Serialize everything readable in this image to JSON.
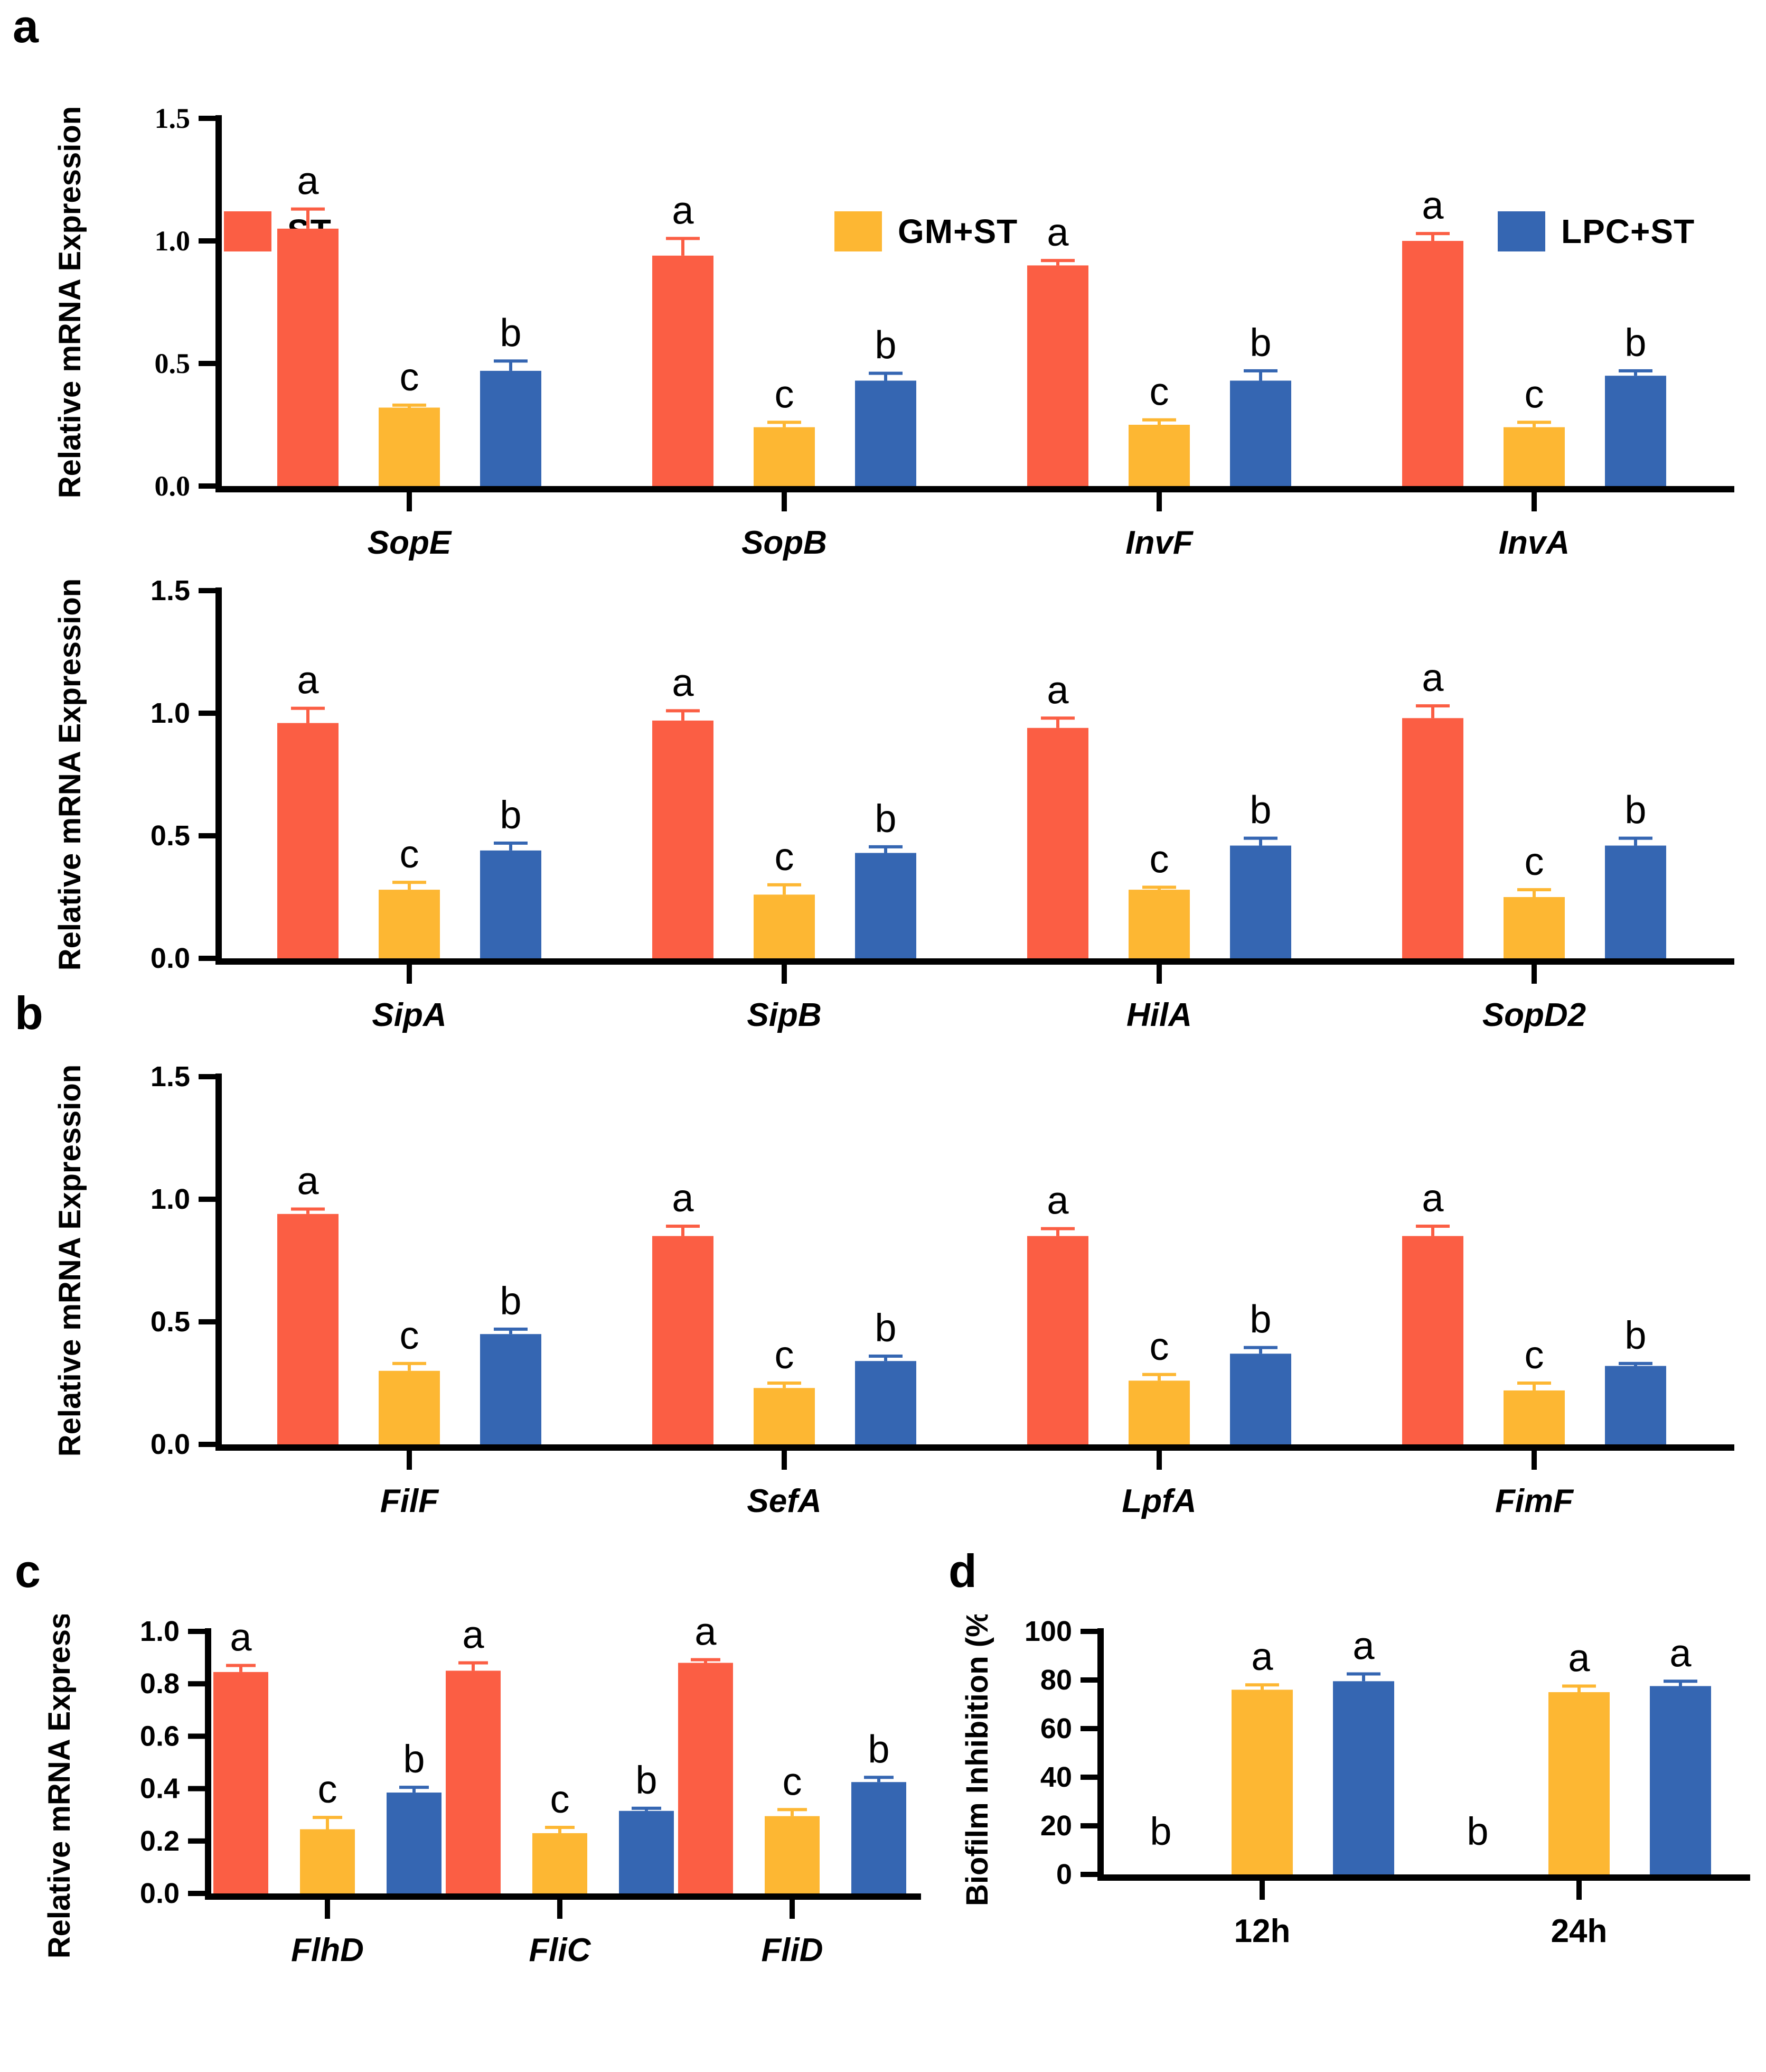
{
  "page": {
    "background": "#ffffff"
  },
  "panels": {
    "a": {
      "letter": "a"
    },
    "b": {
      "letter": "b"
    },
    "c": {
      "letter": "c"
    },
    "d": {
      "letter": "d"
    }
  },
  "legend": {
    "items": [
      {
        "label": "ST",
        "color": "#FB5E44"
      },
      {
        "label": "GM+ST",
        "color": "#FDB733"
      },
      {
        "label": "LPC+ST",
        "color": "#3566B2"
      }
    ]
  },
  "chart_data": [
    {
      "panel": "a",
      "type": "bar",
      "title": "",
      "xlabel": "",
      "ylabel": "Relative mRNA Expression",
      "ylim": [
        0,
        1.5
      ],
      "yticks": [
        0,
        0.5,
        1.0,
        1.5
      ],
      "ytick_labels": [
        "0.0",
        "0.5",
        "1.0",
        "1.5"
      ],
      "categories": [
        "SopE",
        "SopB",
        "InvF",
        "InvA"
      ],
      "series": [
        {
          "name": "ST",
          "values": [
            1.05,
            0.94,
            0.9,
            1.0
          ],
          "errors": [
            0.08,
            0.07,
            0.02,
            0.03
          ],
          "letters": [
            "a",
            "a",
            "a",
            "a"
          ]
        },
        {
          "name": "GM+ST",
          "values": [
            0.32,
            0.24,
            0.25,
            0.24
          ],
          "errors": [
            0.01,
            0.02,
            0.02,
            0.02
          ],
          "letters": [
            "c",
            "c",
            "c",
            "c"
          ]
        },
        {
          "name": "LPC+ST",
          "values": [
            0.47,
            0.43,
            0.43,
            0.45
          ],
          "errors": [
            0.04,
            0.03,
            0.04,
            0.02
          ],
          "letters": [
            "b",
            "b",
            "b",
            "b"
          ]
        }
      ]
    },
    {
      "panel": "a",
      "type": "bar",
      "title": "",
      "xlabel": "",
      "ylabel": "Relative mRNA Expression",
      "ylim": [
        0,
        1.5
      ],
      "yticks": [
        0,
        0.5,
        1.0,
        1.5
      ],
      "ytick_labels": [
        "0.0",
        "0.5",
        "1.0",
        "1.5"
      ],
      "categories": [
        "SipA",
        "SipB",
        "HilA",
        "SopD2"
      ],
      "series": [
        {
          "name": "ST",
          "values": [
            0.96,
            0.97,
            0.94,
            0.98
          ],
          "errors": [
            0.06,
            0.04,
            0.04,
            0.05
          ],
          "letters": [
            "a",
            "a",
            "a",
            "a"
          ]
        },
        {
          "name": "GM+ST",
          "values": [
            0.28,
            0.26,
            0.28,
            0.25
          ],
          "errors": [
            0.03,
            0.04,
            0.01,
            0.03
          ],
          "letters": [
            "c",
            "c",
            "c",
            "c"
          ]
        },
        {
          "name": "LPC+ST",
          "values": [
            0.44,
            0.43,
            0.46,
            0.46
          ],
          "errors": [
            0.03,
            0.025,
            0.03,
            0.03
          ],
          "letters": [
            "b",
            "b",
            "b",
            "b"
          ]
        }
      ]
    },
    {
      "panel": "b",
      "type": "bar",
      "title": "",
      "xlabel": "",
      "ylabel": "Relative mRNA Expression",
      "ylim": [
        0,
        1.5
      ],
      "yticks": [
        0,
        0.5,
        1.0,
        1.5
      ],
      "ytick_labels": [
        "0.0",
        "0.5",
        "1.0",
        "1.5"
      ],
      "categories": [
        "FilF",
        "SefA",
        "LpfA",
        "FimF"
      ],
      "series": [
        {
          "name": "ST",
          "values": [
            0.94,
            0.85,
            0.85,
            0.85
          ],
          "errors": [
            0.02,
            0.04,
            0.03,
            0.04
          ],
          "letters": [
            "a",
            "a",
            "a",
            "a"
          ]
        },
        {
          "name": "GM+ST",
          "values": [
            0.3,
            0.23,
            0.26,
            0.22
          ],
          "errors": [
            0.03,
            0.02,
            0.025,
            0.03
          ],
          "letters": [
            "c",
            "c",
            "c",
            "c"
          ]
        },
        {
          "name": "LPC+ST",
          "values": [
            0.45,
            0.34,
            0.37,
            0.32
          ],
          "errors": [
            0.02,
            0.02,
            0.025,
            0.01
          ],
          "letters": [
            "b",
            "b",
            "b",
            "b"
          ]
        }
      ]
    },
    {
      "panel": "c",
      "type": "bar",
      "title": "",
      "xlabel": "",
      "ylabel": "Relative mRNA Expression",
      "ylim": [
        0,
        1.0
      ],
      "yticks": [
        0,
        0.2,
        0.4,
        0.6,
        0.8,
        1.0
      ],
      "ytick_labels": [
        "0.0",
        "0.2",
        "0.4",
        "0.6",
        "0.8",
        "1.0"
      ],
      "categories": [
        "FlhD",
        "FliC",
        "FliD"
      ],
      "series": [
        {
          "name": "ST",
          "values": [
            0.845,
            0.85,
            0.88
          ],
          "errors": [
            0.025,
            0.03,
            0.012
          ],
          "letters": [
            "a",
            "a",
            "a"
          ]
        },
        {
          "name": "GM+ST",
          "values": [
            0.245,
            0.23,
            0.295
          ],
          "errors": [
            0.045,
            0.022,
            0.025
          ],
          "letters": [
            "c",
            "c",
            "c"
          ]
        },
        {
          "name": "LPC+ST",
          "values": [
            0.385,
            0.315,
            0.425
          ],
          "errors": [
            0.02,
            0.01,
            0.018
          ],
          "letters": [
            "b",
            "b",
            "b"
          ]
        }
      ]
    },
    {
      "panel": "d",
      "type": "bar",
      "title": "",
      "xlabel": "",
      "ylabel": "Biofilm Inhibition (%)",
      "ylim": [
        0,
        100
      ],
      "yticks": [
        0,
        20,
        40,
        60,
        80,
        100
      ],
      "ytick_labels": [
        "0",
        "20",
        "40",
        "60",
        "80",
        "100"
      ],
      "categories": [
        "12h",
        "24h"
      ],
      "series": [
        {
          "name": "ST",
          "values": [
            0,
            0
          ],
          "errors": [
            0,
            0
          ],
          "letters": [
            "b",
            "b"
          ]
        },
        {
          "name": "GM+ST",
          "values": [
            76,
            75
          ],
          "errors": [
            2,
            2.5
          ],
          "letters": [
            "a",
            "a"
          ]
        },
        {
          "name": "LPC+ST",
          "values": [
            79.5,
            77.5
          ],
          "errors": [
            3,
            2
          ],
          "letters": [
            "a",
            "a"
          ]
        }
      ]
    }
  ]
}
